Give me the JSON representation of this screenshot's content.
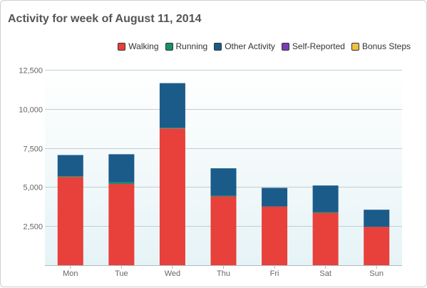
{
  "title": "Activity for week of August 11, 2014",
  "legend": [
    {
      "label": "Walking",
      "color": "#e8403a"
    },
    {
      "label": "Running",
      "color": "#1a8f6c"
    },
    {
      "label": "Other Activity",
      "color": "#1b5b8a"
    },
    {
      "label": "Self-Reported",
      "color": "#7a3bb5"
    },
    {
      "label": "Bonus Steps",
      "color": "#f0c040"
    }
  ],
  "chart_data": {
    "type": "bar",
    "stacked": true,
    "title": "Activity for week of August 11, 2014",
    "categories": [
      "Mon",
      "Tue",
      "Wed",
      "Thu",
      "Fri",
      "Sat",
      "Sun"
    ],
    "series": [
      {
        "name": "Walking",
        "color": "#e8403a",
        "values": [
          5650,
          5200,
          8750,
          4400,
          3750,
          3350,
          2450
        ]
      },
      {
        "name": "Running",
        "color": "#1a8f6c",
        "values": [
          50,
          100,
          50,
          50,
          0,
          50,
          0
        ]
      },
      {
        "name": "Other Activity",
        "color": "#1b5b8a",
        "values": [
          1350,
          1800,
          2850,
          1750,
          1200,
          1700,
          1100
        ]
      },
      {
        "name": "Self-Reported",
        "color": "#7a3bb5",
        "values": [
          0,
          0,
          0,
          0,
          0,
          0,
          0
        ]
      },
      {
        "name": "Bonus Steps",
        "color": "#f0c040",
        "values": [
          0,
          0,
          0,
          0,
          0,
          0,
          0
        ]
      }
    ],
    "ylim": [
      0,
      12500
    ],
    "yticks": [
      2500,
      5000,
      7500,
      10000,
      12500
    ],
    "ytick_labels": [
      "2,500",
      "5,000",
      "7,500",
      "10,000",
      "12,500"
    ],
    "grid": true,
    "legend_position": "top-right"
  }
}
